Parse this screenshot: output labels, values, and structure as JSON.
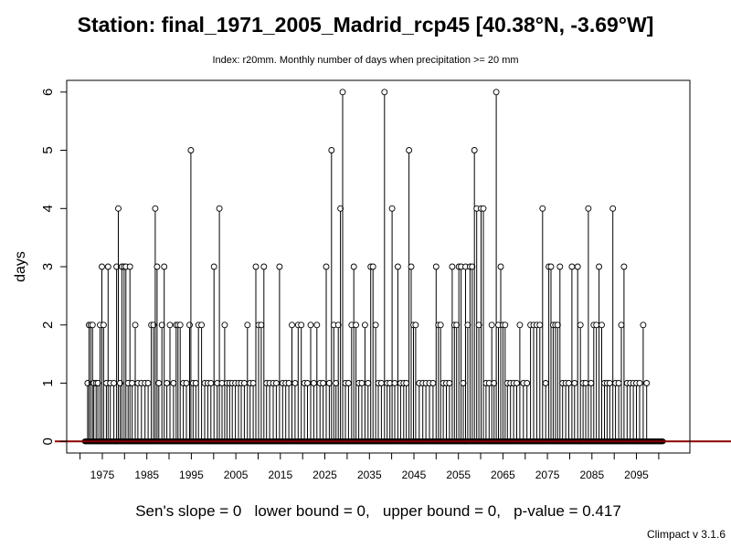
{
  "chart_data": {
    "type": "line",
    "style": "vertical-lines-with-open-circles",
    "title": "Station: final_1971_2005_Madrid_rcp45 [40.38°N, -3.69°W]",
    "subtitle": "Index: r20mm. Monthly number of days when precipitation >= 20 mm",
    "xlabel": "",
    "ylabel": "days",
    "xlim": [
      1967,
      2107
    ],
    "ylim": [
      -0.2,
      6.2
    ],
    "x_ticks": [
      1975,
      1985,
      1995,
      2005,
      2015,
      2025,
      2035,
      2045,
      2055,
      2065,
      2075,
      2085,
      2095
    ],
    "y_ticks": [
      0,
      1,
      2,
      3,
      4,
      5,
      6
    ],
    "trend_line_value": 0,
    "trend_line_color": "#8b0000",
    "series_start_year": 1971,
    "series_end_year": 2101,
    "points": [
      [
        1971.7,
        1
      ],
      [
        1972.0,
        2
      ],
      [
        1972.4,
        2
      ],
      [
        1972.8,
        2
      ],
      [
        1973.1,
        1
      ],
      [
        1973.6,
        1
      ],
      [
        1974.0,
        1
      ],
      [
        1974.5,
        2
      ],
      [
        1974.9,
        3
      ],
      [
        1975.3,
        2
      ],
      [
        1975.9,
        1
      ],
      [
        1976.3,
        3
      ],
      [
        1976.8,
        1
      ],
      [
        1977.6,
        1
      ],
      [
        1978.2,
        3
      ],
      [
        1978.6,
        4
      ],
      [
        1979.0,
        1
      ],
      [
        1979.4,
        3
      ],
      [
        1979.9,
        3
      ],
      [
        1980.3,
        3
      ],
      [
        1980.8,
        1
      ],
      [
        1981.2,
        3
      ],
      [
        1981.7,
        1
      ],
      [
        1982.4,
        2
      ],
      [
        1983.0,
        1
      ],
      [
        1983.8,
        1
      ],
      [
        1984.6,
        1
      ],
      [
        1985.3,
        1
      ],
      [
        1986.0,
        2
      ],
      [
        1986.5,
        2
      ],
      [
        1986.9,
        4
      ],
      [
        1987.3,
        3
      ],
      [
        1987.7,
        1
      ],
      [
        1988.4,
        2
      ],
      [
        1988.9,
        3
      ],
      [
        1989.5,
        1
      ],
      [
        1990.2,
        2
      ],
      [
        1991.0,
        1
      ],
      [
        1991.6,
        2
      ],
      [
        1992.0,
        2
      ],
      [
        1992.5,
        2
      ],
      [
        1993.2,
        1
      ],
      [
        1993.9,
        1
      ],
      [
        1994.6,
        2
      ],
      [
        1994.9,
        5
      ],
      [
        1995.4,
        1
      ],
      [
        1996.0,
        1
      ],
      [
        1996.6,
        2
      ],
      [
        1997.3,
        2
      ],
      [
        1998.0,
        1
      ],
      [
        1998.7,
        1
      ],
      [
        1999.4,
        1
      ],
      [
        2000.1,
        3
      ],
      [
        2000.8,
        1
      ],
      [
        2001.3,
        4
      ],
      [
        2001.9,
        1
      ],
      [
        2002.5,
        2
      ],
      [
        2003.0,
        1
      ],
      [
        2003.6,
        1
      ],
      [
        2004.2,
        1
      ],
      [
        2004.9,
        1
      ],
      [
        2005.6,
        1
      ],
      [
        2006.2,
        1
      ],
      [
        2006.9,
        1
      ],
      [
        2007.6,
        2
      ],
      [
        2008.2,
        1
      ],
      [
        2008.9,
        1
      ],
      [
        2009.5,
        3
      ],
      [
        2010.1,
        2
      ],
      [
        2010.7,
        2
      ],
      [
        2011.3,
        3
      ],
      [
        2011.9,
        1
      ],
      [
        2012.6,
        1
      ],
      [
        2013.4,
        1
      ],
      [
        2014.1,
        1
      ],
      [
        2014.8,
        3
      ],
      [
        2015.5,
        1
      ],
      [
        2016.2,
        1
      ],
      [
        2016.9,
        1
      ],
      [
        2017.6,
        2
      ],
      [
        2018.3,
        1
      ],
      [
        2019.0,
        2
      ],
      [
        2019.7,
        2
      ],
      [
        2020.4,
        1
      ],
      [
        2021.1,
        1
      ],
      [
        2021.8,
        2
      ],
      [
        2022.5,
        1
      ],
      [
        2023.2,
        2
      ],
      [
        2023.9,
        1
      ],
      [
        2024.6,
        1
      ],
      [
        2025.3,
        3
      ],
      [
        2026.0,
        1
      ],
      [
        2026.5,
        5
      ],
      [
        2027.0,
        2
      ],
      [
        2027.5,
        1
      ],
      [
        2028.0,
        2
      ],
      [
        2028.5,
        4
      ],
      [
        2029.0,
        6
      ],
      [
        2029.6,
        1
      ],
      [
        2030.3,
        1
      ],
      [
        2031.0,
        2
      ],
      [
        2031.5,
        3
      ],
      [
        2032.0,
        2
      ],
      [
        2032.6,
        1
      ],
      [
        2033.3,
        1
      ],
      [
        2034.0,
        2
      ],
      [
        2034.7,
        1
      ],
      [
        2035.3,
        3
      ],
      [
        2035.8,
        3
      ],
      [
        2036.4,
        2
      ],
      [
        2037.0,
        1
      ],
      [
        2037.7,
        1
      ],
      [
        2038.4,
        6
      ],
      [
        2039.0,
        1
      ],
      [
        2039.6,
        1
      ],
      [
        2040.1,
        4
      ],
      [
        2040.7,
        1
      ],
      [
        2041.4,
        3
      ],
      [
        2042.0,
        1
      ],
      [
        2042.7,
        1
      ],
      [
        2043.3,
        1
      ],
      [
        2043.9,
        5
      ],
      [
        2044.4,
        3
      ],
      [
        2044.9,
        2
      ],
      [
        2045.4,
        2
      ],
      [
        2046.2,
        1
      ],
      [
        2047.0,
        1
      ],
      [
        2047.7,
        1
      ],
      [
        2048.5,
        1
      ],
      [
        2049.3,
        1
      ],
      [
        2050.0,
        3
      ],
      [
        2050.5,
        2
      ],
      [
        2051.0,
        2
      ],
      [
        2051.6,
        1
      ],
      [
        2052.3,
        1
      ],
      [
        2053.0,
        1
      ],
      [
        2053.6,
        3
      ],
      [
        2054.1,
        2
      ],
      [
        2054.6,
        2
      ],
      [
        2055.1,
        3
      ],
      [
        2055.6,
        3
      ],
      [
        2056.1,
        1
      ],
      [
        2056.6,
        3
      ],
      [
        2057.1,
        2
      ],
      [
        2057.6,
        3
      ],
      [
        2058.1,
        3
      ],
      [
        2058.6,
        5
      ],
      [
        2059.1,
        4
      ],
      [
        2059.6,
        2
      ],
      [
        2060.1,
        4
      ],
      [
        2060.6,
        4
      ],
      [
        2061.2,
        1
      ],
      [
        2061.9,
        1
      ],
      [
        2062.5,
        2
      ],
      [
        2063.0,
        1
      ],
      [
        2063.5,
        6
      ],
      [
        2064.0,
        2
      ],
      [
        2064.5,
        3
      ],
      [
        2065.0,
        2
      ],
      [
        2065.5,
        2
      ],
      [
        2066.0,
        1
      ],
      [
        2066.7,
        1
      ],
      [
        2067.4,
        1
      ],
      [
        2068.1,
        1
      ],
      [
        2068.8,
        2
      ],
      [
        2069.6,
        1
      ],
      [
        2070.4,
        1
      ],
      [
        2071.2,
        2
      ],
      [
        2071.9,
        2
      ],
      [
        2072.6,
        2
      ],
      [
        2073.3,
        2
      ],
      [
        2073.9,
        4
      ],
      [
        2074.6,
        1
      ],
      [
        2075.3,
        3
      ],
      [
        2075.8,
        3
      ],
      [
        2076.3,
        2
      ],
      [
        2076.8,
        2
      ],
      [
        2077.3,
        2
      ],
      [
        2077.8,
        3
      ],
      [
        2078.4,
        1
      ],
      [
        2079.1,
        1
      ],
      [
        2079.8,
        1
      ],
      [
        2080.5,
        3
      ],
      [
        2081.1,
        1
      ],
      [
        2081.8,
        3
      ],
      [
        2082.4,
        2
      ],
      [
        2083.0,
        1
      ],
      [
        2083.6,
        1
      ],
      [
        2084.2,
        4
      ],
      [
        2084.8,
        1
      ],
      [
        2085.4,
        2
      ],
      [
        2086.0,
        2
      ],
      [
        2086.6,
        3
      ],
      [
        2087.2,
        2
      ],
      [
        2087.8,
        1
      ],
      [
        2088.4,
        1
      ],
      [
        2089.0,
        1
      ],
      [
        2089.7,
        4
      ],
      [
        2090.3,
        1
      ],
      [
        2091.0,
        1
      ],
      [
        2091.6,
        2
      ],
      [
        2092.2,
        3
      ],
      [
        2092.9,
        1
      ],
      [
        2093.6,
        1
      ],
      [
        2094.3,
        1
      ],
      [
        2095.0,
        1
      ],
      [
        2095.7,
        1
      ],
      [
        2096.5,
        2
      ],
      [
        2097.3,
        1
      ]
    ]
  },
  "footer": {
    "stats": "Sen's slope = 0   lower bound = 0,   upper bound = 0,   p-value = 0.417",
    "version": "Climpact v 3.1.6"
  }
}
